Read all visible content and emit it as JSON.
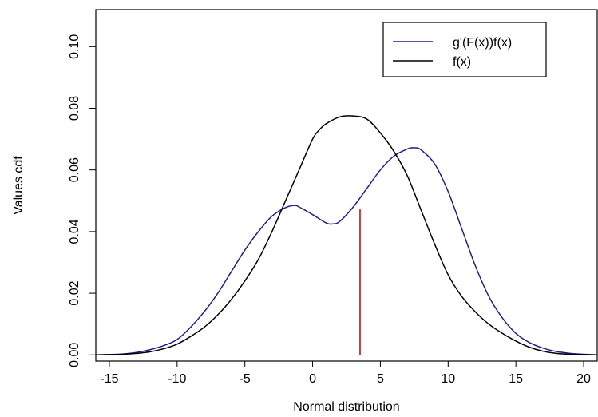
{
  "chart_data": {
    "type": "line",
    "title": "",
    "xlabel": "Normal distribution",
    "ylabel": "Values cdf",
    "xlim": [
      -16,
      21
    ],
    "ylim": [
      -0.002,
      0.112
    ],
    "xticks": [
      -15,
      -10,
      -5,
      0,
      5,
      10,
      15,
      20
    ],
    "yticks": [
      0.0,
      0.02,
      0.04,
      0.06,
      0.08,
      0.1
    ],
    "xtick_labels": [
      "-15",
      "-10",
      "-5",
      "0",
      "5",
      "10",
      "15",
      "20"
    ],
    "ytick_labels": [
      "0.00",
      "0.02",
      "0.04",
      "0.06",
      "0.08",
      "0.10"
    ],
    "grid": false,
    "legend_position": "top-right",
    "series": [
      {
        "name": "g'(F(x))f(x)",
        "color": "#1f1f8f",
        "x": [
          -16,
          -15,
          -14,
          -13,
          -12,
          -11,
          -10,
          -9,
          -8,
          -7,
          -6,
          -5,
          -4,
          -3,
          -2,
          -1.3,
          -1,
          0,
          1,
          1.5,
          2,
          3,
          4,
          5,
          6,
          7,
          7.5,
          8,
          9,
          10,
          11,
          12,
          13,
          14,
          15,
          16,
          17,
          18,
          19,
          20,
          21
        ],
        "y": [
          0.0,
          0.0001,
          0.0003,
          0.0008,
          0.0017,
          0.003,
          0.005,
          0.009,
          0.014,
          0.02,
          0.027,
          0.034,
          0.04,
          0.045,
          0.0478,
          0.0485,
          0.048,
          0.0455,
          0.0428,
          0.0425,
          0.0433,
          0.048,
          0.054,
          0.06,
          0.0645,
          0.0668,
          0.0672,
          0.0665,
          0.062,
          0.053,
          0.041,
          0.029,
          0.019,
          0.012,
          0.007,
          0.004,
          0.0022,
          0.0011,
          0.0005,
          0.0002,
          0.0
        ]
      },
      {
        "name": "f(x)",
        "color": "#000000",
        "x": [
          -16,
          -15,
          -14,
          -13,
          -12,
          -11,
          -10,
          -9,
          -8,
          -7,
          -6,
          -5,
          -4,
          -3,
          -2,
          -1,
          0,
          0.5,
          1,
          2,
          3,
          4,
          5,
          6,
          7,
          8,
          9,
          10,
          11,
          12,
          13,
          14,
          15,
          16,
          17,
          18,
          19,
          20,
          21
        ],
        "y": [
          0.0,
          0.0001,
          0.0002,
          0.0005,
          0.001,
          0.002,
          0.0035,
          0.006,
          0.009,
          0.013,
          0.018,
          0.024,
          0.031,
          0.04,
          0.05,
          0.06,
          0.07,
          0.073,
          0.075,
          0.0772,
          0.0775,
          0.0765,
          0.072,
          0.066,
          0.058,
          0.047,
          0.036,
          0.026,
          0.019,
          0.014,
          0.01,
          0.007,
          0.0045,
          0.0025,
          0.0012,
          0.0005,
          0.0002,
          0.0001,
          0.0
        ]
      }
    ],
    "annotations": [
      {
        "type": "vertical-segment",
        "x": 3.5,
        "y0": 0.0,
        "y1": 0.0472,
        "color": "#c00000"
      }
    ]
  }
}
